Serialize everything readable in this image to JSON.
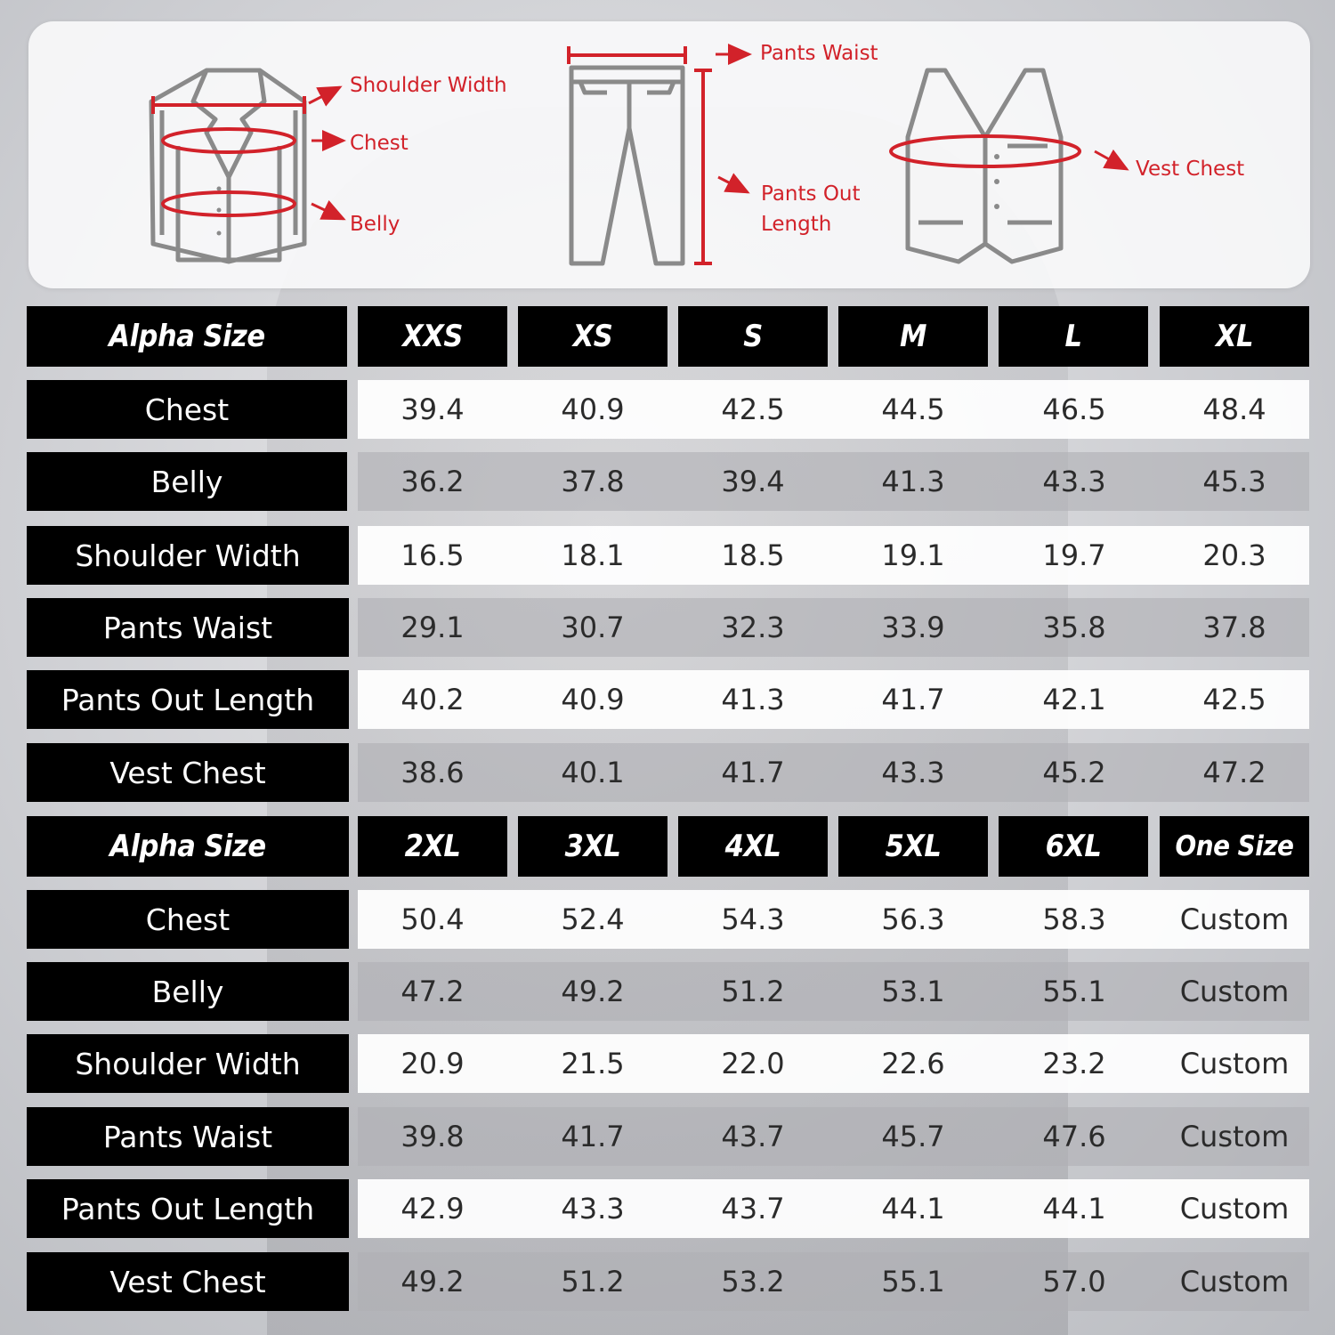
{
  "diagram": {
    "labels": {
      "shoulder_width": "Shoulder Width",
      "chest": "Chest",
      "belly": "Belly",
      "pants_waist": "Pants Waist",
      "pants_out_length_1": "Pants Out",
      "pants_out_length_2": "Length",
      "vest_chest": "Vest Chest"
    },
    "accent_color": "#d2222a",
    "icons": [
      "jacket-icon",
      "pants-icon",
      "vest-icon"
    ]
  },
  "tables": [
    {
      "header_label": "Alpha Size",
      "sizes": [
        "XXS",
        "XS",
        "S",
        "M",
        "L",
        "XL"
      ],
      "rows": [
        {
          "label": "Chest",
          "values": [
            "39.4",
            "40.9",
            "42.5",
            "44.5",
            "46.5",
            "48.4"
          ]
        },
        {
          "label": "Belly",
          "values": [
            "36.2",
            "37.8",
            "39.4",
            "41.3",
            "43.3",
            "45.3"
          ]
        },
        {
          "label": "Shoulder Width",
          "values": [
            "16.5",
            "18.1",
            "18.5",
            "19.1",
            "19.7",
            "20.3"
          ]
        },
        {
          "label": "Pants Waist",
          "values": [
            "29.1",
            "30.7",
            "32.3",
            "33.9",
            "35.8",
            "37.8"
          ]
        },
        {
          "label": "Pants Out Length",
          "values": [
            "40.2",
            "40.9",
            "41.3",
            "41.7",
            "42.1",
            "42.5"
          ]
        },
        {
          "label": "Vest Chest",
          "values": [
            "38.6",
            "40.1",
            "41.7",
            "43.3",
            "45.2",
            "47.2"
          ]
        }
      ]
    },
    {
      "header_label": "Alpha Size",
      "sizes": [
        "2XL",
        "3XL",
        "4XL",
        "5XL",
        "6XL",
        "One Size"
      ],
      "rows": [
        {
          "label": "Chest",
          "values": [
            "50.4",
            "52.4",
            "54.3",
            "56.3",
            "58.3",
            "Custom"
          ]
        },
        {
          "label": "Belly",
          "values": [
            "47.2",
            "49.2",
            "51.2",
            "53.1",
            "55.1",
            "Custom"
          ]
        },
        {
          "label": "Shoulder Width",
          "values": [
            "20.9",
            "21.5",
            "22.0",
            "22.6",
            "23.2",
            "Custom"
          ]
        },
        {
          "label": "Pants Waist",
          "values": [
            "39.8",
            "41.7",
            "43.7",
            "45.7",
            "47.6",
            "Custom"
          ]
        },
        {
          "label": "Pants Out Length",
          "values": [
            "42.9",
            "43.3",
            "43.7",
            "44.1",
            "44.1",
            "Custom"
          ]
        },
        {
          "label": "Vest Chest",
          "values": [
            "49.2",
            "51.2",
            "53.2",
            "55.1",
            "57.0",
            "Custom"
          ]
        }
      ]
    }
  ]
}
